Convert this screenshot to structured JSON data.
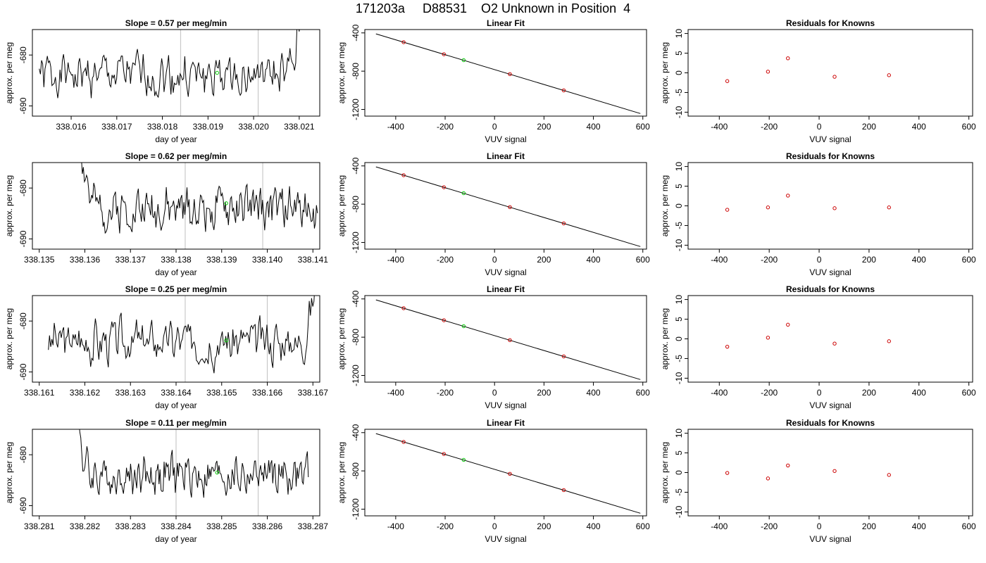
{
  "page_title": "171203a     D88531    O2 Unknown in Position  4",
  "colors": {
    "trace": "#000000",
    "unknown_point": "#00cc00",
    "known_point": "#cc0000",
    "marker_line": "#c8c8c8",
    "axis": "#000000"
  },
  "chart_data": [
    {
      "id": "r1-trace",
      "type": "line",
      "title": "Slope =  0.57  per meg/min",
      "xlabel": "day of year",
      "ylabel": "approx. per meg",
      "xlim": [
        338.01515,
        338.02145
      ],
      "ylim": [
        -692,
        -675
      ],
      "xticks": [
        338.016,
        338.017,
        338.018,
        338.019,
        338.02,
        338.021
      ],
      "xtick_labels": [
        "338.016",
        "338.017",
        "338.018",
        "338.019",
        "338.020",
        "338.021"
      ],
      "xtick_decimals": 3,
      "yticks": [
        -690,
        -680
      ],
      "x_start": 338.0153,
      "x_end": 338.0211,
      "spike_end": "up",
      "seed": 1,
      "vlines": [
        338.0184,
        338.0201
      ],
      "highlight_point": {
        "x": 338.0192,
        "y": -683.5
      }
    },
    {
      "id": "r1-fit",
      "type": "scatter",
      "title": "Linear Fit",
      "xlabel": "VUV signal",
      "ylabel": "approx. per meg",
      "xlim": [
        -525,
        615
      ],
      "ylim": [
        -1270,
        -365
      ],
      "xticks": [
        -400,
        -200,
        0,
        200,
        400,
        600
      ],
      "yticks": [
        -1200,
        -800,
        -400
      ],
      "line": {
        "x": [
          -480,
          590
        ],
        "y": [
          -410,
          -1243
        ]
      },
      "points": [
        {
          "x": -368,
          "y": -497,
          "series": "known"
        },
        {
          "x": -205,
          "y": -623,
          "series": "known"
        },
        {
          "x": -125,
          "y": -685,
          "series": "unknown"
        },
        {
          "x": 62,
          "y": -831,
          "series": "known"
        },
        {
          "x": 280,
          "y": -1001,
          "series": "known"
        }
      ]
    },
    {
      "id": "r1-resid",
      "type": "scatter",
      "title": "Residuals for Knowns",
      "xlabel": "VUV signal",
      "ylabel": "approx. per meg",
      "xlim": [
        -525,
        615
      ],
      "ylim": [
        -11,
        11
      ],
      "xticks": [
        -400,
        -200,
        0,
        200,
        400,
        600
      ],
      "yticks": [
        -10,
        -5,
        0,
        5,
        10
      ],
      "points": [
        {
          "x": -368,
          "y": -2.1,
          "series": "known"
        },
        {
          "x": -205,
          "y": 0.3,
          "series": "known"
        },
        {
          "x": -125,
          "y": 3.7,
          "series": "known"
        },
        {
          "x": 62,
          "y": -1.0,
          "series": "known"
        },
        {
          "x": 280,
          "y": -0.6,
          "series": "known"
        }
      ]
    },
    {
      "id": "r2-trace",
      "type": "line",
      "title": "Slope =  0.62  per meg/min",
      "xlabel": "day of year",
      "ylabel": "approx. per meg",
      "xlim": [
        338.13485,
        338.14115
      ],
      "ylim": [
        -692,
        -675
      ],
      "xticks": [
        338.135,
        338.136,
        338.137,
        338.138,
        338.139,
        338.14,
        338.141
      ],
      "xtick_labels": [
        "338.135",
        "338.136",
        "338.137",
        "338.138",
        "338.139",
        "338.140",
        "338.141"
      ],
      "xtick_decimals": 3,
      "yticks": [
        -690,
        -680
      ],
      "x_start": 338.1359,
      "x_end": 338.1411,
      "spike_start": "up",
      "seed": 2,
      "vlines": [
        338.1382,
        338.1399
      ],
      "highlight_point": {
        "x": 338.1391,
        "y": -683.0
      }
    },
    {
      "id": "r2-fit",
      "type": "scatter",
      "title": "Linear Fit",
      "xlabel": "VUV signal",
      "ylabel": "approx. per meg",
      "xlim": [
        -525,
        615
      ],
      "ylim": [
        -1270,
        -365
      ],
      "xticks": [
        -400,
        -200,
        0,
        200,
        400,
        600
      ],
      "yticks": [
        -1200,
        -800,
        -400
      ],
      "line": {
        "x": [
          -480,
          590
        ],
        "y": [
          -410,
          -1243
        ]
      },
      "points": [
        {
          "x": -368,
          "y": -497,
          "series": "known"
        },
        {
          "x": -205,
          "y": -623,
          "series": "known"
        },
        {
          "x": -125,
          "y": -685,
          "series": "unknown"
        },
        {
          "x": 62,
          "y": -831,
          "series": "known"
        },
        {
          "x": 280,
          "y": -1001,
          "series": "known"
        }
      ]
    },
    {
      "id": "r2-resid",
      "type": "scatter",
      "title": "Residuals for Knowns",
      "xlabel": "VUV signal",
      "ylabel": "approx. per meg",
      "xlim": [
        -525,
        615
      ],
      "ylim": [
        -11,
        11
      ],
      "xticks": [
        -400,
        -200,
        0,
        200,
        400,
        600
      ],
      "yticks": [
        -10,
        -5,
        0,
        5,
        10
      ],
      "points": [
        {
          "x": -368,
          "y": -1.0,
          "series": "known"
        },
        {
          "x": -205,
          "y": -0.4,
          "series": "known"
        },
        {
          "x": -125,
          "y": 2.6,
          "series": "known"
        },
        {
          "x": 62,
          "y": -0.6,
          "series": "known"
        },
        {
          "x": 280,
          "y": -0.4,
          "series": "known"
        }
      ]
    },
    {
      "id": "r3-trace",
      "type": "line",
      "title": "Slope =  0.25  per meg/min",
      "xlabel": "day of year",
      "ylabel": "approx. per meg",
      "xlim": [
        338.16085,
        338.16715
      ],
      "ylim": [
        -692,
        -675
      ],
      "xticks": [
        338.161,
        338.162,
        338.163,
        338.164,
        338.165,
        338.166,
        338.167
      ],
      "xtick_labels": [
        "338.161",
        "338.162",
        "338.163",
        "338.164",
        "338.165",
        "338.166",
        "338.167"
      ],
      "xtick_decimals": 3,
      "yticks": [
        -690,
        -680
      ],
      "x_start": 338.1612,
      "x_end": 338.1671,
      "spike_end": "up",
      "seed": 3,
      "vlines": [
        338.1642,
        338.166
      ],
      "highlight_point": {
        "x": 338.1651,
        "y": -683.8
      }
    },
    {
      "id": "r3-fit",
      "type": "scatter",
      "title": "Linear Fit",
      "xlabel": "VUV signal",
      "ylabel": "approx. per meg",
      "xlim": [
        -525,
        615
      ],
      "ylim": [
        -1270,
        -365
      ],
      "xticks": [
        -400,
        -200,
        0,
        200,
        400,
        600
      ],
      "yticks": [
        -1200,
        -800,
        -400
      ],
      "line": {
        "x": [
          -480,
          590
        ],
        "y": [
          -410,
          -1243
        ]
      },
      "points": [
        {
          "x": -368,
          "y": -497,
          "series": "known"
        },
        {
          "x": -205,
          "y": -623,
          "series": "known"
        },
        {
          "x": -125,
          "y": -685,
          "series": "unknown"
        },
        {
          "x": 62,
          "y": -831,
          "series": "known"
        },
        {
          "x": 280,
          "y": -1001,
          "series": "known"
        }
      ]
    },
    {
      "id": "r3-resid",
      "type": "scatter",
      "title": "Residuals for Knowns",
      "xlabel": "VUV signal",
      "ylabel": "approx. per meg",
      "xlim": [
        -525,
        615
      ],
      "ylim": [
        -11,
        11
      ],
      "xticks": [
        -400,
        -200,
        0,
        200,
        400,
        600
      ],
      "yticks": [
        -10,
        -5,
        0,
        5,
        10
      ],
      "points": [
        {
          "x": -368,
          "y": -2.0,
          "series": "known"
        },
        {
          "x": -205,
          "y": 0.3,
          "series": "known"
        },
        {
          "x": -125,
          "y": 3.6,
          "series": "known"
        },
        {
          "x": 62,
          "y": -1.2,
          "series": "known"
        },
        {
          "x": 280,
          "y": -0.6,
          "series": "known"
        }
      ]
    },
    {
      "id": "r4-trace",
      "type": "line",
      "title": "Slope =  0.11  per meg/min",
      "xlabel": "day of year",
      "ylabel": "approx. per meg",
      "xlim": [
        338.28085,
        338.28715
      ],
      "ylim": [
        -692,
        -675
      ],
      "xticks": [
        338.281,
        338.282,
        338.283,
        338.284,
        338.285,
        338.286,
        338.287
      ],
      "xtick_labels": [
        "338.281",
        "338.282",
        "338.283",
        "338.284",
        "338.285",
        "338.286",
        "338.287"
      ],
      "xtick_decimals": 3,
      "yticks": [
        -690,
        -680
      ],
      "x_start": 338.2818,
      "x_end": 338.2869,
      "spike_start": "up",
      "seed": 4,
      "vlines": [
        338.284,
        338.2858
      ],
      "highlight_point": {
        "x": 338.2849,
        "y": -683.5
      }
    },
    {
      "id": "r4-fit",
      "type": "scatter",
      "title": "Linear Fit",
      "xlabel": "VUV signal",
      "ylabel": "approx. per meg",
      "xlim": [
        -525,
        615
      ],
      "ylim": [
        -1270,
        -365
      ],
      "xticks": [
        -400,
        -200,
        0,
        200,
        400,
        600
      ],
      "yticks": [
        -1200,
        -800,
        -400
      ],
      "line": {
        "x": [
          -480,
          590
        ],
        "y": [
          -410,
          -1243
        ]
      },
      "points": [
        {
          "x": -368,
          "y": -497,
          "series": "known"
        },
        {
          "x": -205,
          "y": -623,
          "series": "known"
        },
        {
          "x": -125,
          "y": -685,
          "series": "unknown"
        },
        {
          "x": 62,
          "y": -831,
          "series": "known"
        },
        {
          "x": 280,
          "y": -1001,
          "series": "known"
        }
      ]
    },
    {
      "id": "r4-resid",
      "type": "scatter",
      "title": "Residuals for Knowns",
      "xlabel": "VUV signal",
      "ylabel": "approx. per meg",
      "xlim": [
        -525,
        615
      ],
      "ylim": [
        -11,
        11
      ],
      "xticks": [
        -400,
        -200,
        0,
        200,
        400,
        600
      ],
      "yticks": [
        -10,
        -5,
        0,
        5,
        10
      ],
      "points": [
        {
          "x": -368,
          "y": -0.1,
          "series": "known"
        },
        {
          "x": -205,
          "y": -1.5,
          "series": "known"
        },
        {
          "x": -125,
          "y": 1.8,
          "series": "known"
        },
        {
          "x": 62,
          "y": 0.4,
          "series": "known"
        },
        {
          "x": 280,
          "y": -0.6,
          "series": "known"
        }
      ]
    }
  ]
}
